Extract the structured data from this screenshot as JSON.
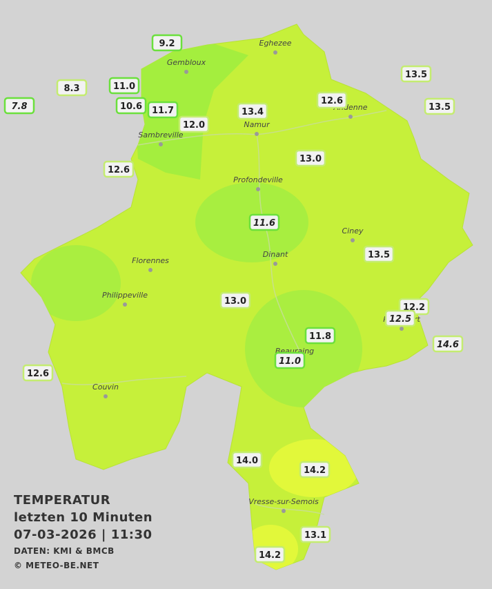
{
  "title": "TEMPERATUR",
  "subtitle": "letzten 10 Minuten",
  "datetime": "07-03-2026  |  11:30",
  "source": "DATEN: KMI & BMCB",
  "copyright": "© METEO-BE.NET",
  "cities": [
    "Eghezee",
    "Gembloux",
    "Andenne",
    "Namur",
    "Sambreville",
    "Profondeville",
    "Ciney",
    "Dinant",
    "Florennes",
    "Philippeville",
    "Rochefort",
    "Beauraing",
    "Couvin",
    "Vresse-sur-Semois"
  ],
  "stations": [
    {
      "label": "9.2",
      "italic": false
    },
    {
      "label": "8.3",
      "italic": false
    },
    {
      "label": "7.8",
      "italic": true
    },
    {
      "label": "11.0",
      "italic": false
    },
    {
      "label": "10.6",
      "italic": false
    },
    {
      "label": "11.7",
      "italic": false
    },
    {
      "label": "12.0",
      "italic": false
    },
    {
      "label": "13.4",
      "italic": false
    },
    {
      "label": "12.6",
      "italic": false
    },
    {
      "label": "13.5",
      "italic": false
    },
    {
      "label": "13.5",
      "italic": false
    },
    {
      "label": "12.6",
      "italic": false
    },
    {
      "label": "13.0",
      "italic": false
    },
    {
      "label": "11.6",
      "italic": true
    },
    {
      "label": "13.5",
      "italic": false
    },
    {
      "label": "13.0",
      "italic": false
    },
    {
      "label": "12.2",
      "italic": false
    },
    {
      "label": "12.5",
      "italic": true
    },
    {
      "label": "11.8",
      "italic": false
    },
    {
      "label": "11.0",
      "italic": true
    },
    {
      "label": "14.6",
      "italic": true
    },
    {
      "label": "12.6",
      "italic": false
    },
    {
      "label": "14.0",
      "italic": false
    },
    {
      "label": "14.2",
      "italic": false
    },
    {
      "label": "13.1",
      "italic": false
    },
    {
      "label": "14.2",
      "italic": false
    }
  ]
}
